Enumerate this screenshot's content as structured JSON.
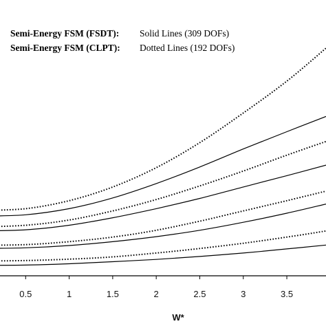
{
  "legend": [
    {
      "method": "Semi-Energy FSM (FSDT):",
      "desc": "Solid Lines (309 DOFs)",
      "style": "solid"
    },
    {
      "method": "Semi-Energy FSM (CLPT):",
      "desc": "Dotted Lines (192 DOFs)",
      "style": "dotted"
    }
  ],
  "chart_data": {
    "type": "line",
    "xlabel": "W*",
    "ylabel": "",
    "x_ticks": [
      "0.5",
      "1",
      "1.5",
      "2",
      "2.5",
      "3",
      "3.5"
    ],
    "xlim": [
      0,
      3.95
    ],
    "ylim": [
      0,
      1
    ],
    "grid": false,
    "series": [
      {
        "style": "dotted",
        "x": [
          0,
          0.5,
          1,
          1.5,
          2,
          2.5,
          3,
          3.5,
          3.95
        ],
        "y": [
          0.287,
          0.295,
          0.33,
          0.39,
          0.475,
          0.585,
          0.715,
          0.855,
          1.0
        ]
      },
      {
        "style": "solid",
        "x": [
          0,
          0.5,
          1,
          1.5,
          2,
          2.5,
          3,
          3.5,
          3.95
        ],
        "y": [
          0.262,
          0.268,
          0.295,
          0.342,
          0.405,
          0.478,
          0.557,
          0.633,
          0.7
        ]
      },
      {
        "style": "dotted",
        "x": [
          0,
          0.5,
          1,
          1.5,
          2,
          2.5,
          3,
          3.5,
          3.95
        ],
        "y": [
          0.215,
          0.222,
          0.245,
          0.285,
          0.335,
          0.395,
          0.46,
          0.53,
          0.59
        ]
      },
      {
        "style": "solid",
        "x": [
          0,
          0.5,
          1,
          1.5,
          2,
          2.5,
          3,
          3.5,
          3.95
        ],
        "y": [
          0.197,
          0.202,
          0.222,
          0.255,
          0.295,
          0.34,
          0.39,
          0.44,
          0.486
        ]
      },
      {
        "style": "dotted",
        "x": [
          0,
          0.5,
          1,
          1.5,
          2,
          2.5,
          3,
          3.5,
          3.95
        ],
        "y": [
          0.134,
          0.137,
          0.15,
          0.17,
          0.2,
          0.24,
          0.285,
          0.33,
          0.372
        ]
      },
      {
        "style": "solid",
        "x": [
          0,
          0.5,
          1,
          1.5,
          2,
          2.5,
          3,
          3.5,
          3.95
        ],
        "y": [
          0.12,
          0.123,
          0.133,
          0.15,
          0.172,
          0.2,
          0.235,
          0.275,
          0.315
        ]
      },
      {
        "style": "dotted",
        "x": [
          0,
          0.5,
          1,
          1.5,
          2,
          2.5,
          3,
          3.5,
          3.95
        ],
        "y": [
          0.065,
          0.067,
          0.073,
          0.083,
          0.1,
          0.12,
          0.143,
          0.17,
          0.197
        ]
      },
      {
        "style": "solid",
        "x": [
          0,
          0.5,
          1,
          1.5,
          2,
          2.5,
          3,
          3.5,
          3.95
        ],
        "y": [
          0.046,
          0.047,
          0.053,
          0.062,
          0.072,
          0.085,
          0.1,
          0.118,
          0.135
        ]
      }
    ]
  }
}
